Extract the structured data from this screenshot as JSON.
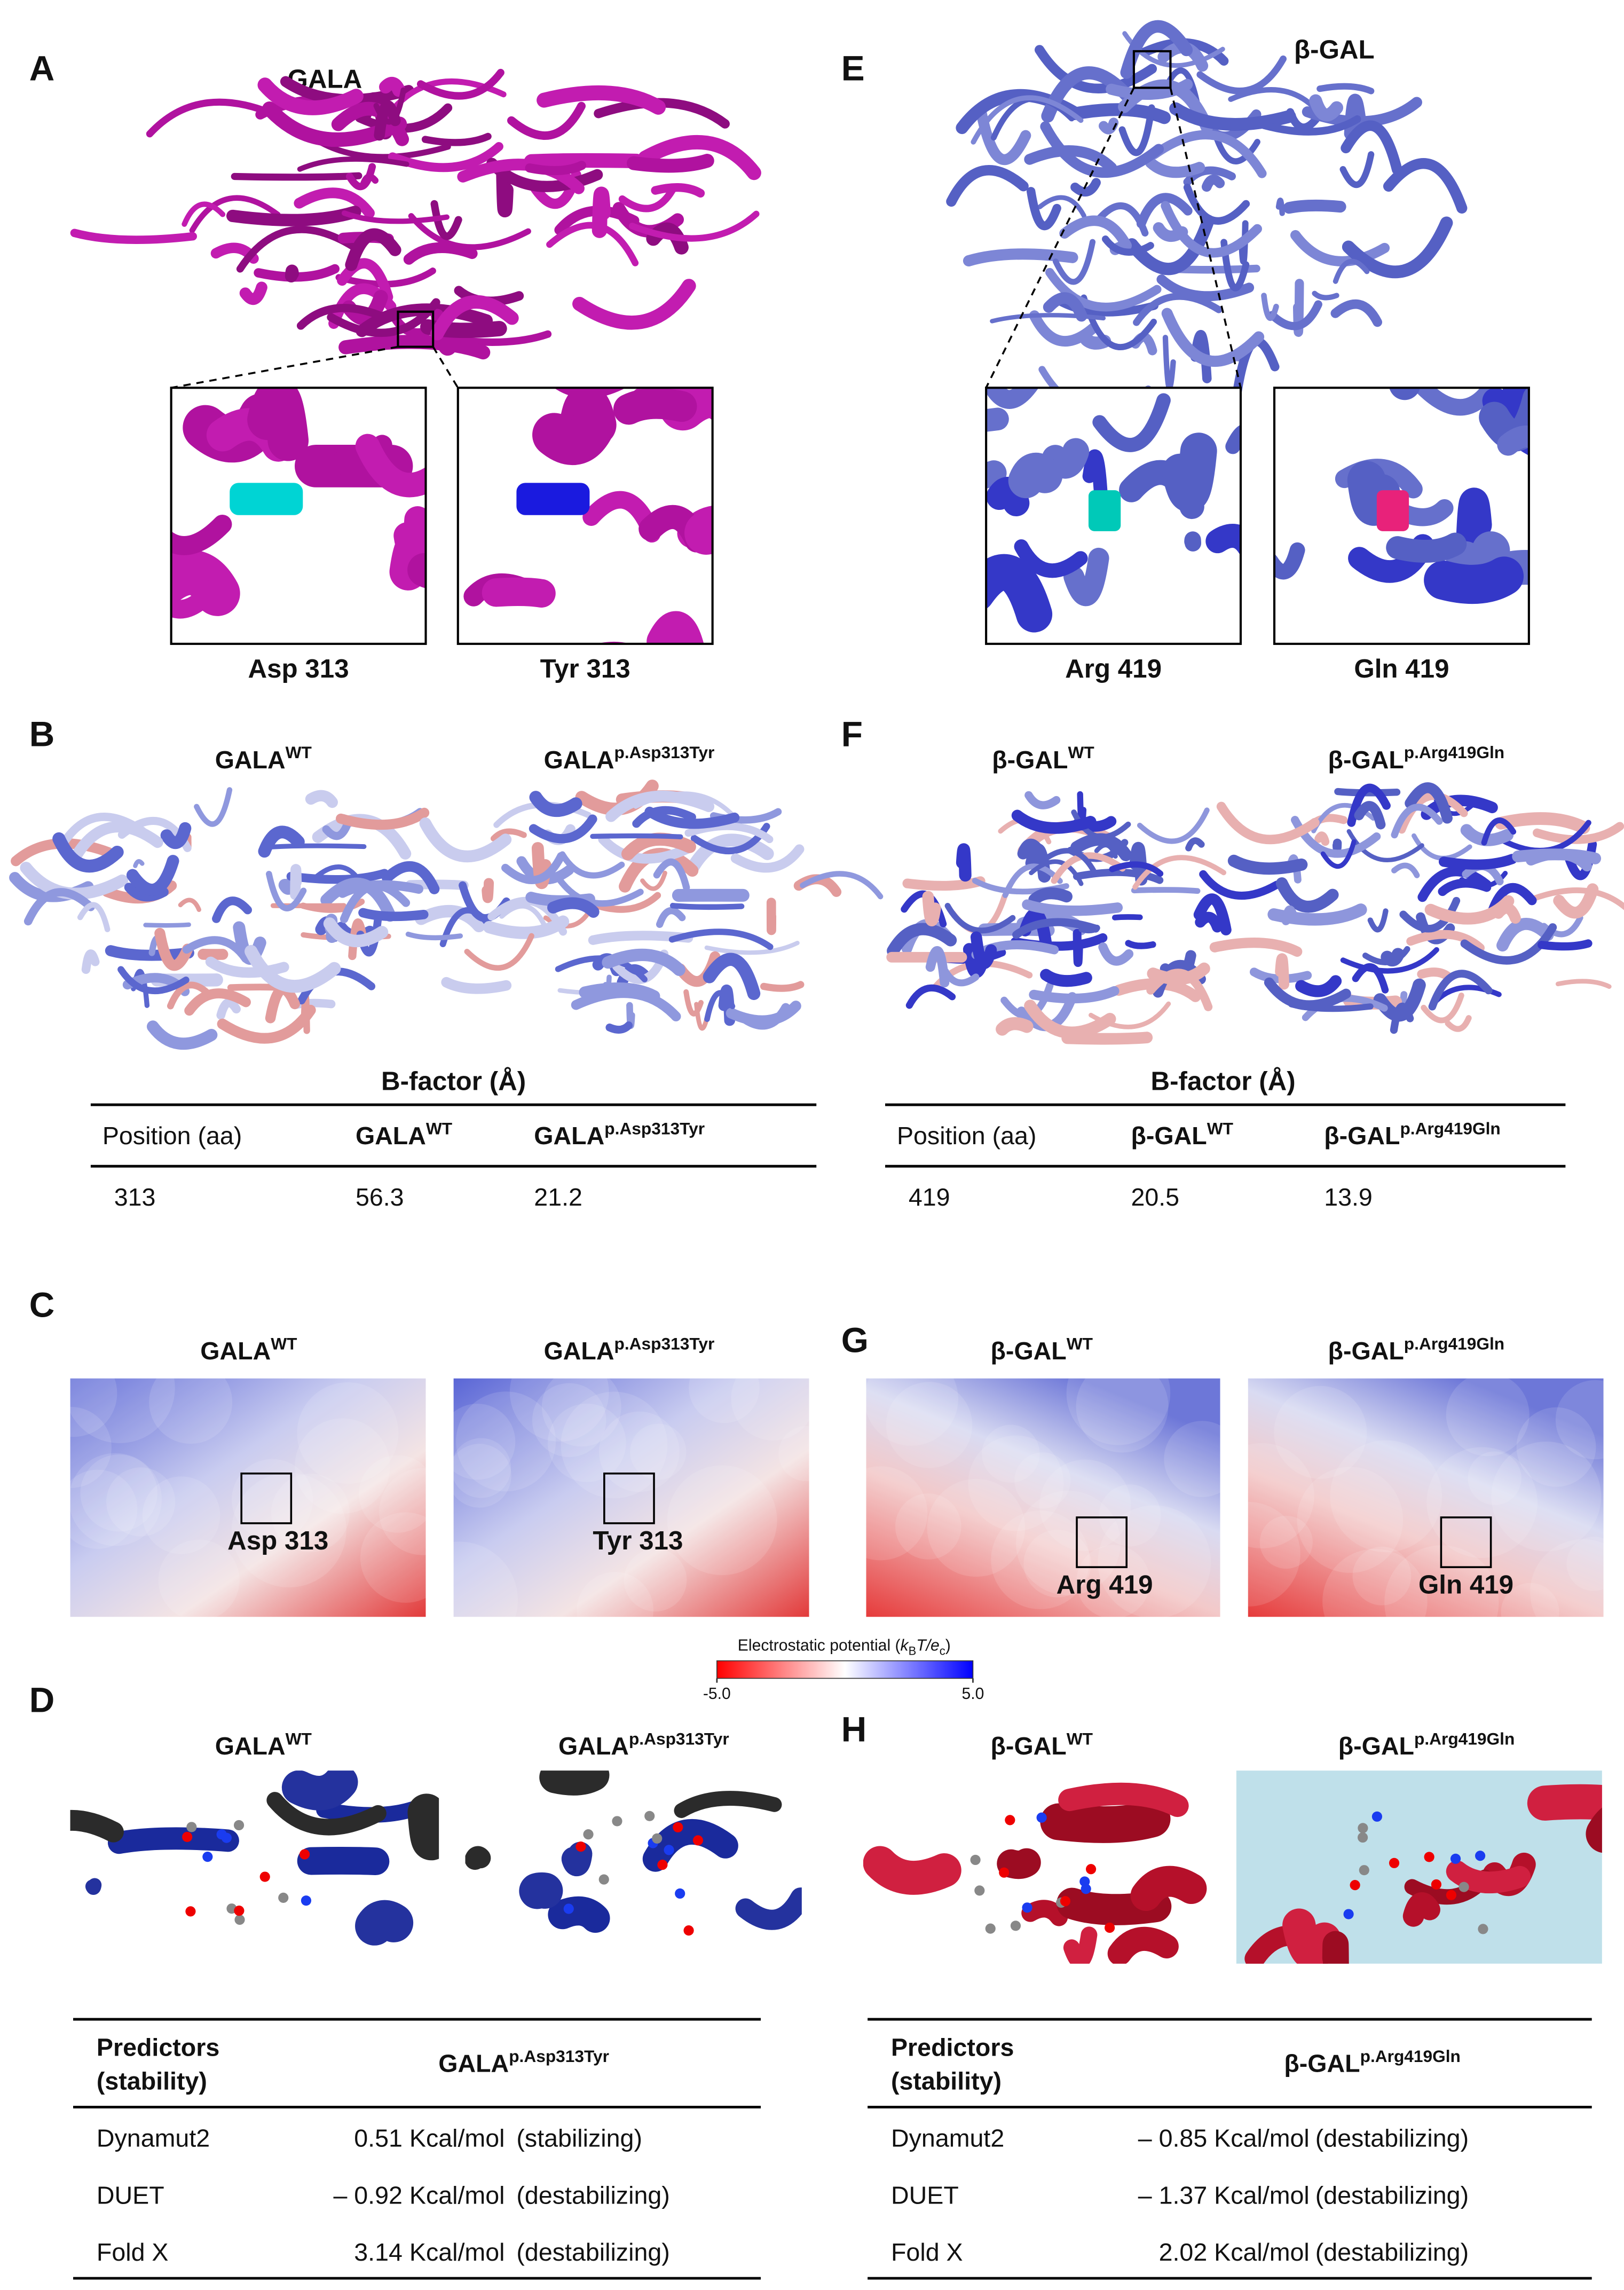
{
  "A": {
    "label": "A",
    "protein": "GALA",
    "insets": [
      "Asp 313",
      "Tyr 313"
    ]
  },
  "E": {
    "label": "E",
    "protein": "β-GAL",
    "insets": [
      "Arg 419",
      "Gln 419"
    ]
  },
  "B": {
    "label": "B",
    "variants": [
      [
        "GALA",
        "WT"
      ],
      [
        "GALA",
        "p.Asp313Tyr"
      ]
    ],
    "table": {
      "title": "B-factor (Å)",
      "header": [
        "Position (aa)",
        [
          "GALA",
          "WT"
        ],
        [
          "GALA",
          "p.Asp313Tyr"
        ]
      ],
      "row": [
        "313",
        "56.3",
        "21.2"
      ]
    }
  },
  "F": {
    "label": "F",
    "variants": [
      [
        "β-GAL",
        "WT"
      ],
      [
        "β-GAL",
        "p.Arg419Gln"
      ]
    ],
    "table": {
      "title": "B-factor (Å)",
      "header": [
        "Position (aa)",
        [
          "β-GAL",
          "WT"
        ],
        [
          "β-GAL",
          "p.Arg419Gln"
        ]
      ],
      "row": [
        "419",
        "20.5",
        "13.9"
      ]
    }
  },
  "C": {
    "label": "C",
    "variants": [
      [
        "GALA",
        "WT"
      ],
      [
        "GALA",
        "p.Asp313Tyr"
      ]
    ],
    "sites": [
      "Asp 313",
      "Tyr 313"
    ]
  },
  "G": {
    "label": "G",
    "variants": [
      [
        "β-GAL",
        "WT"
      ],
      [
        "β-GAL",
        "p.Arg419Gln"
      ]
    ],
    "sites": [
      "Arg 419",
      "Gln 419"
    ]
  },
  "colorbar": {
    "title": [
      "Electrostatic potential (",
      "k",
      "B",
      "T/",
      "e",
      "c",
      ")"
    ],
    "ticks": [
      {
        "value": -5,
        "label": "-5.0"
      },
      {
        "value": 5,
        "label": "5.0"
      }
    ]
  },
  "D": {
    "label": "D",
    "variants": [
      [
        "GALA",
        "WT"
      ],
      [
        "GALA",
        "p.Asp313Tyr"
      ]
    ],
    "table": {
      "header": [
        [
          "Predictors",
          "(stability)"
        ],
        [
          "GALA",
          "p.Asp313Tyr"
        ]
      ],
      "rows": [
        [
          "Dynamut2",
          "0.51 Kcal/mol",
          "(stabilizing)"
        ],
        [
          "DUET",
          "– 0.92 Kcal/mol",
          "(destabilizing)"
        ],
        [
          "Fold X",
          "3.14 Kcal/mol",
          "(destabilizing)"
        ]
      ]
    }
  },
  "H": {
    "label": "H",
    "variants": [
      [
        "β-GAL",
        "WT"
      ],
      [
        "β-GAL",
        "p.Arg419Gln"
      ]
    ],
    "table": {
      "header": [
        [
          "Predictors",
          "(stability)"
        ],
        [
          "β-GAL",
          "p.Arg419Gln"
        ]
      ],
      "rows": [
        [
          "Dynamut2",
          "– 0.85 Kcal/mol",
          "(destabilizing)"
        ],
        [
          "DUET",
          "– 1.37 Kcal/mol",
          "(destabilizing)"
        ],
        [
          "Fold X",
          "2.02 Kcal/mol",
          "(destabilizing)"
        ]
      ]
    }
  }
}
